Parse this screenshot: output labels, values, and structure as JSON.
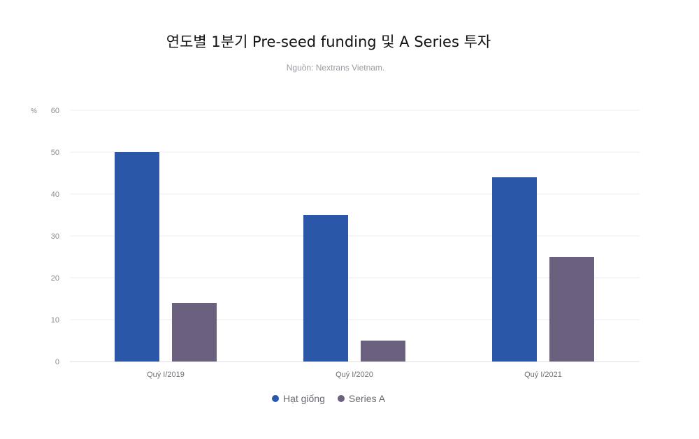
{
  "chart_data": {
    "type": "bar",
    "title": "연도별 1분기 Pre-seed funding 및 A Series 투자",
    "subtitle": "Nguồn: Nextrans Vietnam.",
    "y_unit": "%",
    "categories": [
      "Quý I/2019",
      "Quý I/2020",
      "Quý I/2021"
    ],
    "series": [
      {
        "name": "Hạt giống",
        "values": [
          50,
          35,
          44
        ],
        "color": "#2b57a8"
      },
      {
        "name": "Series A",
        "values": [
          14,
          5,
          25
        ],
        "color": "#6b617e"
      }
    ],
    "ylim": [
      0,
      60
    ],
    "yticks": [
      0,
      10,
      20,
      30,
      40,
      50,
      60
    ],
    "grid": true,
    "legend_position": "bottom"
  }
}
